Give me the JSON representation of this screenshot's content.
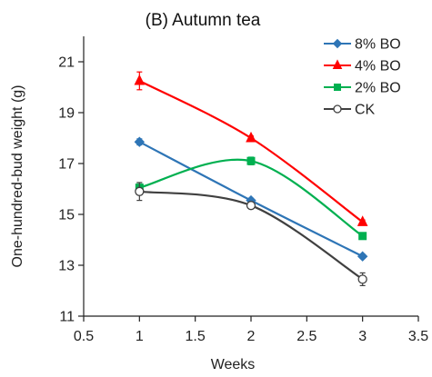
{
  "chart_data": {
    "type": "line",
    "title": "(B) Autumn tea",
    "xlabel": "Weeks",
    "ylabel": "One-hundred-bud weight (g)",
    "xlim": [
      0.5,
      3.5
    ],
    "ylim": [
      11,
      22
    ],
    "xticks": [
      0.5,
      1,
      1.5,
      2,
      2.5,
      3,
      3.5
    ],
    "xtick_labels": [
      "0.5",
      "1",
      "1.5",
      "2",
      "2.5",
      "3",
      "3.5"
    ],
    "yticks": [
      11,
      13,
      15,
      17,
      19,
      21
    ],
    "ytick_labels": [
      "11",
      "13",
      "15",
      "17",
      "19",
      "21"
    ],
    "grid": false,
    "legend_position": "top-right",
    "x": [
      1,
      2,
      3
    ],
    "series": [
      {
        "name": "8% BO",
        "values": [
          17.85,
          15.55,
          13.35
        ],
        "errors": [
          0.12,
          0.08,
          0.08
        ],
        "color": "#2e75b6",
        "marker": "diamond"
      },
      {
        "name": "4% BO",
        "values": [
          20.25,
          18.0,
          14.7
        ],
        "errors": [
          0.35,
          0.08,
          0.08
        ],
        "color": "#ff0000",
        "marker": "triangle"
      },
      {
        "name": "2% BO",
        "values": [
          16.05,
          17.1,
          14.15
        ],
        "errors": [
          0.2,
          0.15,
          0.1
        ],
        "color": "#00b050",
        "marker": "square"
      },
      {
        "name": "CK",
        "values": [
          15.9,
          15.35,
          12.45
        ],
        "errors": [
          0.35,
          0.12,
          0.25
        ],
        "color": "#404040",
        "marker": "open-circle"
      }
    ]
  }
}
